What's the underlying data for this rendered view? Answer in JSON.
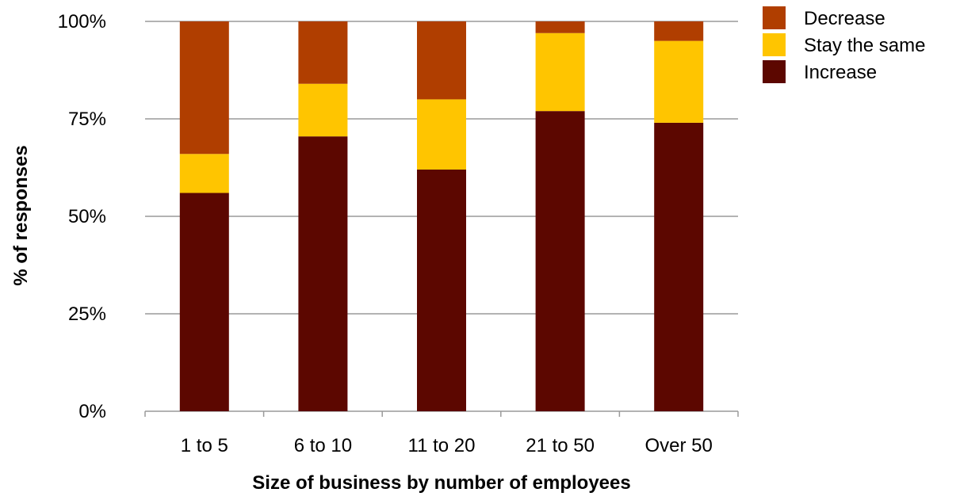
{
  "chart_data": {
    "type": "bar",
    "stacked": true,
    "categories": [
      "1 to 5",
      "6 to 10",
      "11 to 20",
      "21 to 50",
      "Over 50"
    ],
    "series": [
      {
        "name": "Increase",
        "values": [
          56,
          70.5,
          62,
          77,
          74
        ],
        "color": "#5c0700"
      },
      {
        "name": "Stay the same",
        "values": [
          10,
          13.5,
          18,
          20,
          21
        ],
        "color": "#ffc500"
      },
      {
        "name": "Decrease",
        "values": [
          34,
          16,
          20,
          3,
          5
        ],
        "color": "#b03e00"
      }
    ],
    "legend_order": [
      "Decrease",
      "Stay the same",
      "Increase"
    ],
    "xlabel": "Size of business by number of employees",
    "ylabel": "% of responses",
    "ylim": [
      0,
      100
    ],
    "yticks": [
      "0%",
      "25%",
      "50%",
      "75%",
      "100%"
    ],
    "grid": true,
    "legend_position": "top-right"
  }
}
